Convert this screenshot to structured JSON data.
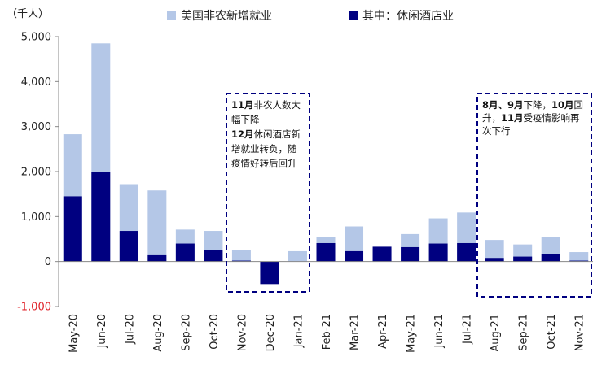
{
  "chart_data": {
    "type": "bar",
    "unit_label": "（千人）",
    "categories": [
      "May-20",
      "Jun-20",
      "Jul-20",
      "Aug-20",
      "Sep-20",
      "Oct-20",
      "Nov-20",
      "Dec-20",
      "Jan-21",
      "Feb-21",
      "Mar-21",
      "Apr-21",
      "May-21",
      "Jun-21",
      "Jul-21",
      "Aug-21",
      "Sep-21",
      "Oct-21",
      "Nov-21"
    ],
    "series": [
      {
        "name": "美国非农新增就业",
        "color": "#b4c7e7",
        "values": [
          2830,
          4850,
          1720,
          1580,
          710,
          680,
          260,
          -300,
          230,
          540,
          780,
          280,
          610,
          960,
          1090,
          480,
          380,
          550,
          210
        ]
      },
      {
        "name": "其中：休闲酒店业",
        "color": "#000080",
        "values": [
          1450,
          2000,
          680,
          140,
          400,
          260,
          20,
          -500,
          0,
          410,
          230,
          330,
          320,
          400,
          410,
          80,
          110,
          170,
          20
        ]
      }
    ],
    "ylim": [
      -1000,
      5000
    ],
    "yticks": [
      -1000,
      0,
      1000,
      2000,
      3000,
      4000,
      5000
    ],
    "ytick_labels": [
      "-1,000",
      "0",
      "1,000",
      "2,000",
      "3,000",
      "4,000",
      "5,000"
    ],
    "annotations": [
      {
        "lines": [
          [
            {
              "t": "11月",
              "b": true
            },
            {
              "t": "非农人数大",
              "b": false
            }
          ],
          [
            {
              "t": "幅下降",
              "b": false
            }
          ],
          [
            {
              "t": "12月",
              "b": true
            },
            {
              "t": "休闲酒店新",
              "b": false
            }
          ],
          [
            {
              "t": "增就业转负，随",
              "b": false
            }
          ],
          [
            {
              "t": "疫情好转后回升",
              "b": false
            }
          ]
        ]
      },
      {
        "lines": [
          [
            {
              "t": "8月、9月",
              "b": true
            },
            {
              "t": "下降，",
              "b": false
            },
            {
              "t": "10月",
              "b": true
            },
            {
              "t": "回",
              "b": false
            }
          ],
          [
            {
              "t": "升，",
              "b": false
            },
            {
              "t": "11月",
              "b": true
            },
            {
              "t": "受疫情影响再",
              "b": false
            }
          ],
          [
            {
              "t": "次下行",
              "b": false
            }
          ]
        ]
      }
    ],
    "legend_position": "top-center",
    "grid": false
  }
}
